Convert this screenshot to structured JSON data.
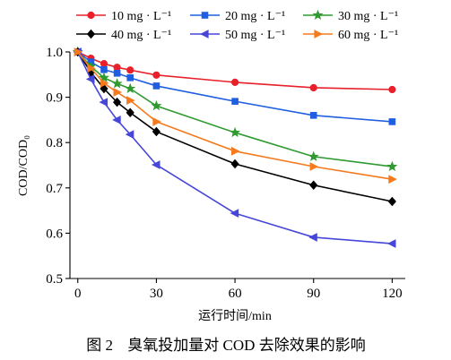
{
  "chart_data": {
    "type": "line",
    "xlabel": "运行时间/min",
    "ylabel": "COD/COD₀",
    "x": [
      0,
      5,
      10,
      15,
      20,
      30,
      60,
      90,
      120
    ],
    "xlim": [
      -3,
      125
    ],
    "ylim": [
      0.5,
      1.0
    ],
    "xticks": [
      0,
      30,
      60,
      90,
      120
    ],
    "yticks": [
      0.5,
      0.6,
      0.7,
      0.8,
      0.9,
      1.0
    ],
    "ytick_labels": [
      "0.5",
      "0.6",
      "0.7",
      "0.8",
      "0.9",
      "1.0"
    ],
    "grid": false,
    "legend": "top",
    "series": [
      {
        "name": "10 mg · L⁻¹",
        "color": "#e8202a",
        "marker": "circle",
        "values": [
          1.0,
          0.986,
          0.974,
          0.966,
          0.96,
          0.949,
          0.933,
          0.921,
          0.917
        ]
      },
      {
        "name": "20 mg · L⁻¹",
        "color": "#1f5ee0",
        "marker": "square",
        "values": [
          1.0,
          0.978,
          0.961,
          0.953,
          0.943,
          0.925,
          0.891,
          0.86,
          0.846
        ]
      },
      {
        "name": "30 mg · L⁻¹",
        "color": "#2f9a2f",
        "marker": "star",
        "values": [
          1.0,
          0.968,
          0.943,
          0.93,
          0.919,
          0.881,
          0.822,
          0.769,
          0.747
        ]
      },
      {
        "name": "40 mg · L⁻¹",
        "color": "#000000",
        "marker": "diamond",
        "values": [
          1.0,
          0.955,
          0.919,
          0.889,
          0.866,
          0.824,
          0.753,
          0.706,
          0.67
        ]
      },
      {
        "name": "50 mg · L⁻¹",
        "color": "#4646d9",
        "marker": "triangle-left",
        "values": [
          1.0,
          0.94,
          0.889,
          0.85,
          0.818,
          0.751,
          0.644,
          0.591,
          0.577
        ]
      },
      {
        "name": "60 mg · L⁻¹",
        "color": "#f57a1e",
        "marker": "triangle-right",
        "values": [
          1.0,
          0.964,
          0.931,
          0.911,
          0.893,
          0.846,
          0.781,
          0.747,
          0.719
        ]
      }
    ]
  },
  "caption": {
    "figure_label": "图 2",
    "text": "臭氧投加量对 COD 去除效果的影响"
  }
}
